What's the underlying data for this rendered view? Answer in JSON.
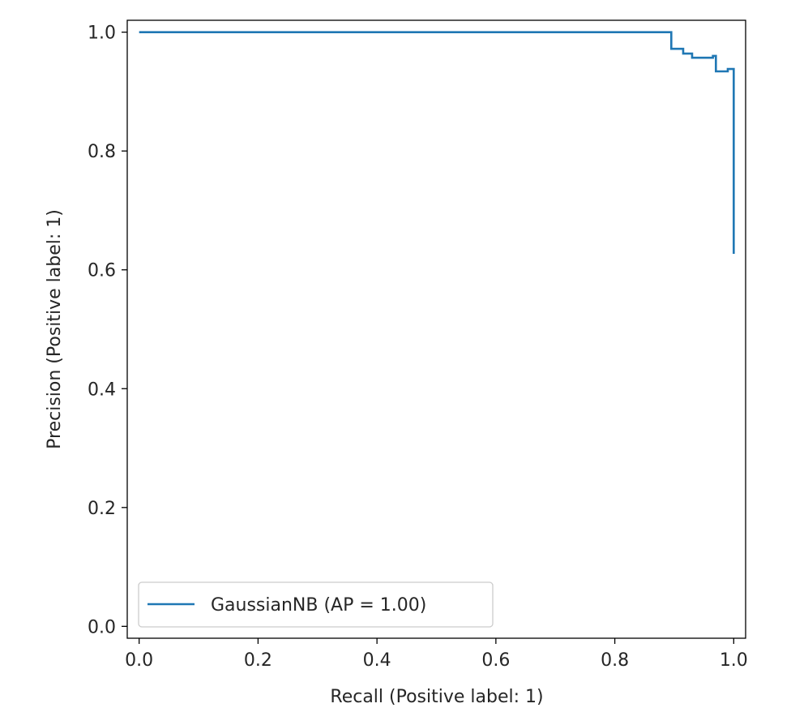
{
  "chart_data": {
    "type": "line",
    "step": "post",
    "xlabel": "Recall (Positive label: 1)",
    "ylabel": "Precision (Positive label: 1)",
    "xlim": [
      -0.02,
      1.02
    ],
    "ylim": [
      -0.02,
      1.02
    ],
    "xticks": [
      0.0,
      0.2,
      0.4,
      0.6,
      0.8,
      1.0
    ],
    "xtick_labels": [
      "0.0",
      "0.2",
      "0.4",
      "0.6",
      "0.8",
      "1.0"
    ],
    "yticks": [
      0.0,
      0.2,
      0.4,
      0.6,
      0.8,
      1.0
    ],
    "ytick_labels": [
      "0.0",
      "0.2",
      "0.4",
      "0.6",
      "0.8",
      "1.0"
    ],
    "grid": false,
    "legend_position": "lower-left",
    "series": [
      {
        "name": "GaussianNB (AP = 1.00)",
        "color": "#1f77b4",
        "x": [
          0.0,
          0.895,
          0.895,
          0.915,
          0.915,
          0.93,
          0.93,
          0.965,
          0.965,
          0.97,
          0.97,
          0.99,
          0.99,
          1.0,
          1.0
        ],
        "y": [
          1.0,
          1.0,
          0.972,
          0.972,
          0.964,
          0.964,
          0.957,
          0.957,
          0.96,
          0.96,
          0.934,
          0.934,
          0.938,
          0.938,
          0.627
        ]
      }
    ]
  }
}
